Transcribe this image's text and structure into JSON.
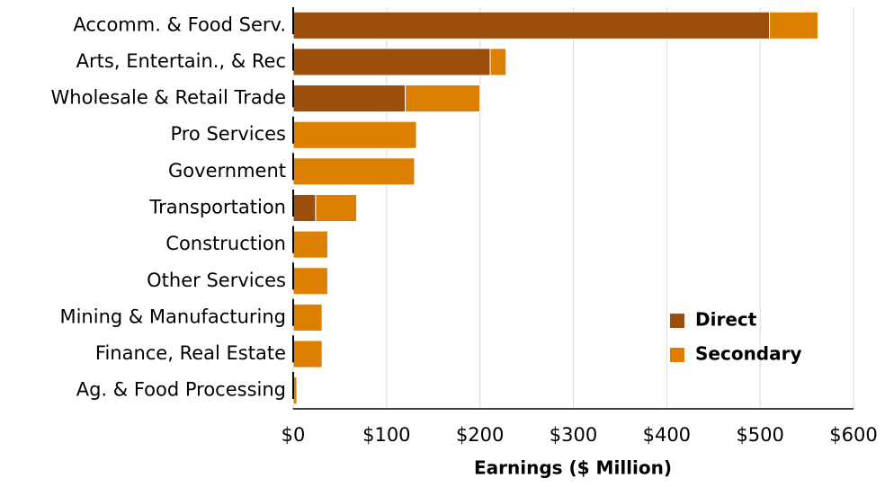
{
  "chart_data": {
    "type": "stacked-barh",
    "x_label": "Earnings ($ Million)",
    "categories": [
      "Accomm. & Food Serv.",
      "Arts, Entertain., & Rec",
      "Wholesale & Retail Trade",
      "Pro Services",
      "Government",
      "Transportation",
      "Construction",
      "Other Services",
      "Mining & Manufacturing",
      "Finance, Real Estate",
      "Ag. & Food Processing"
    ],
    "series": [
      {
        "name": "Direct",
        "color": "#9c4f0a",
        "values": [
          510,
          211,
          120,
          0,
          0,
          24,
          0,
          0,
          0,
          0,
          0
        ]
      },
      {
        "name": "Secondary",
        "color": "#dd7f00",
        "values": [
          52,
          17,
          80,
          132,
          130,
          44,
          37,
          37,
          31,
          31,
          4
        ]
      }
    ],
    "xlim": [
      0,
      600
    ],
    "xticks": [
      {
        "value": 0,
        "label": "$0"
      },
      {
        "value": 100,
        "label": "$100"
      },
      {
        "value": 200,
        "label": "$200"
      },
      {
        "value": 300,
        "label": "$300"
      },
      {
        "value": 400,
        "label": "$400"
      },
      {
        "value": 500,
        "label": "$500"
      },
      {
        "value": 600,
        "label": "$600"
      }
    ],
    "grid": true,
    "legend": "lower-right"
  }
}
